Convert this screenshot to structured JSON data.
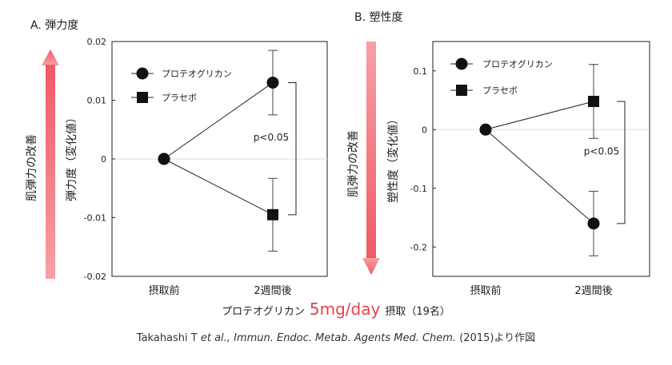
{
  "chart_data": [
    {
      "type": "line",
      "panel_title": "A. 弾力度",
      "side_label": "肌弾力の改善",
      "ylabel": "弾力度（変化値）",
      "categories": [
        "摂取前",
        "2週間後"
      ],
      "ylim": [
        -0.02,
        0.02
      ],
      "yticks": [
        0.02,
        0.01,
        0,
        -0.01,
        -0.02
      ],
      "ytick_labels": [
        "0.02",
        "0.01",
        "0",
        "-0.01",
        "-0.02"
      ],
      "series": [
        {
          "name": "プロテオグリカン",
          "marker": "circle",
          "values": [
            0,
            0.013
          ],
          "error": [
            0,
            0.0055
          ]
        },
        {
          "name": "プラセボ",
          "marker": "square",
          "values": [
            0,
            -0.0095
          ],
          "error": [
            0,
            0.0062
          ]
        }
      ],
      "annotation": "p<0.05",
      "arrow_direction": "up",
      "grid": false,
      "legend": "top-left"
    },
    {
      "type": "line",
      "panel_title": "B. 塑性度",
      "side_label": "肌弾力の改善",
      "ylabel": "塑性度（変化値）",
      "categories": [
        "摂取前",
        "2週間後"
      ],
      "ylim": [
        -0.25,
        0.15
      ],
      "yticks": [
        0.1,
        0,
        -0.1,
        -0.2
      ],
      "ytick_labels": [
        "0.1",
        "0",
        "-0.1",
        "-0.2"
      ],
      "series": [
        {
          "name": "プロテオグリカン",
          "marker": "circle",
          "values": [
            0,
            -0.16
          ],
          "error": [
            0,
            0.055
          ]
        },
        {
          "name": "プラセボ",
          "marker": "square",
          "values": [
            0,
            0.048
          ],
          "error": [
            0,
            0.063
          ]
        }
      ],
      "annotation": "p<0.05",
      "arrow_direction": "down",
      "grid": false,
      "legend": "top-left"
    }
  ],
  "caption": {
    "prefix": "プロテオグリカン",
    "dose": "5mg/day",
    "suffix": "摂取（19名）"
  },
  "reference": {
    "author": "Takahashi T ",
    "etal": "et al.,",
    "journal": " Immun. Endoc. Metab. Agents Med. Chem.",
    "tail": " (2015)より作図"
  },
  "colors": {
    "arrow": "#f07078",
    "highlight": "#e8404a",
    "axis": "#222222",
    "zero_line": "#dddddd"
  }
}
